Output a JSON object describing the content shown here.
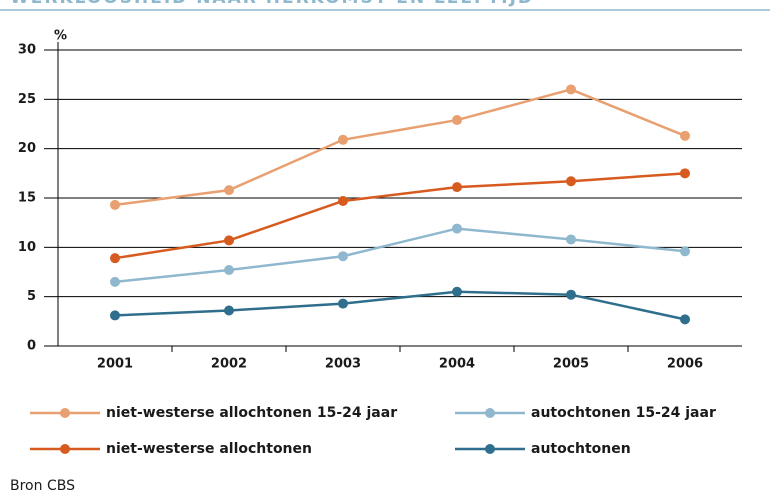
{
  "chart_data": {
    "type": "line",
    "title": "WERKLOOSHEID NAAR HERKOMST EN LEEFTIJD",
    "y_unit_label": "%",
    "source": "Bron CBS",
    "categories": [
      "2001",
      "2002",
      "2003",
      "2004",
      "2005",
      "2006"
    ],
    "series": [
      {
        "name": "niet-westerse allochtonen 15-24 jaar",
        "color": "#e9a070",
        "values": [
          14.3,
          15.8,
          20.9,
          22.9,
          26.0,
          21.3
        ]
      },
      {
        "name": "autochtonen 15-24 jaar",
        "color": "#8fb8cf",
        "values": [
          6.5,
          7.7,
          9.1,
          11.9,
          10.8,
          9.6
        ]
      },
      {
        "name": "niet-westerse allochtonen",
        "color": "#d75a1f",
        "values": [
          8.9,
          10.7,
          14.7,
          16.1,
          16.7,
          17.5
        ]
      },
      {
        "name": "autochtonen",
        "color": "#2f6e8c",
        "values": [
          3.1,
          3.6,
          4.3,
          5.5,
          5.2,
          2.7
        ]
      }
    ],
    "ylim": [
      0,
      30
    ],
    "yticks": [
      0,
      5,
      10,
      15,
      20,
      25,
      30
    ],
    "grid": true
  }
}
